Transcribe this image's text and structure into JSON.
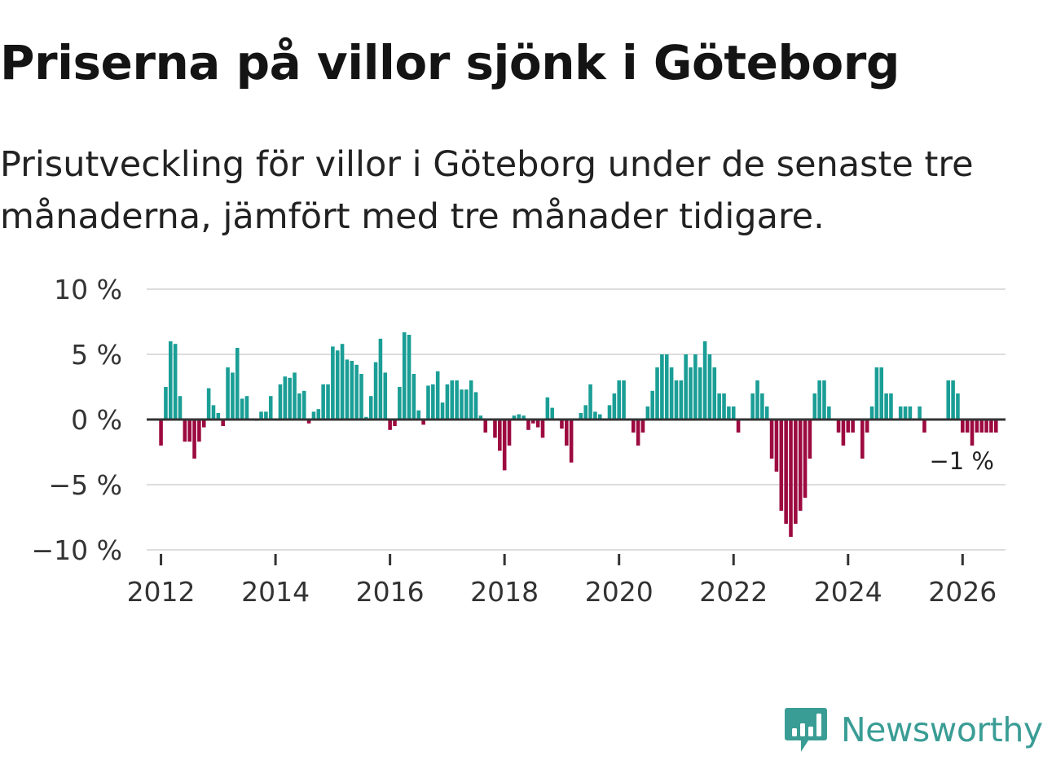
{
  "title": "Priserna på villor sjönk i Göteborg",
  "subtitle": "Prisutveckling för villor i Göteborg under de senaste tre månaderna, jämfört med tre månader tidigare.",
  "brand": {
    "name": "Newsworthy",
    "color": "#3a9d95"
  },
  "colors": {
    "positive": "#1a9e96",
    "negative": "#9c0a3f",
    "gridline": "#dddddd",
    "zeroline": "#333333",
    "text": "#222222"
  },
  "chart_data": {
    "type": "bar",
    "title": "Priserna på villor sjönk i Göteborg",
    "xlabel": "",
    "ylabel": "",
    "unit": "%",
    "ylim": [
      -10,
      10
    ],
    "xlim": [
      2011.75,
      2026.75
    ],
    "y_ticks": [
      10,
      5,
      0,
      -5,
      -10
    ],
    "y_tick_labels": [
      "10 %",
      "5 %",
      "0 %",
      "−5 %",
      "−10 %"
    ],
    "x_ticks": [
      2012,
      2014,
      2016,
      2018,
      2020,
      2022,
      2024,
      2026
    ],
    "x_tick_labels": [
      "2012",
      "2014",
      "2016",
      "2018",
      "2020",
      "2022",
      "2024",
      "2026"
    ],
    "grid": true,
    "start": "2012-01",
    "frequency": "monthly",
    "last_label": "−1 %",
    "values": [
      -2,
      2.5,
      6,
      5.8,
      1.8,
      -1.7,
      -1.7,
      -3,
      -1.7,
      -0.6,
      2.4,
      1.1,
      0.5,
      -0.5,
      4,
      3.6,
      5.5,
      1.6,
      1.8,
      0,
      -0.1,
      0.6,
      0.6,
      1.8,
      0,
      2.7,
      3.3,
      3.2,
      3.6,
      2,
      2.2,
      -0.3,
      0.6,
      0.8,
      2.7,
      2.7,
      5.6,
      5.3,
      5.8,
      4.6,
      4.5,
      4.2,
      3.5,
      0.2,
      1.8,
      4.4,
      6.2,
      3.6,
      -0.8,
      -0.5,
      2.5,
      6.7,
      6.5,
      3.5,
      0.7,
      -0.4,
      2.6,
      2.7,
      3.7,
      1.3,
      2.7,
      3,
      3,
      2.3,
      2.3,
      3,
      2.1,
      0.3,
      -1,
      0,
      -1.4,
      -2.4,
      -3.9,
      -2,
      0.3,
      0.4,
      0.3,
      -0.8,
      -0.3,
      -0.6,
      -1.4,
      1.7,
      0.9,
      0,
      -0.7,
      -2,
      -3.3,
      0,
      0.5,
      1.1,
      2.7,
      0.6,
      0.4,
      0,
      1.1,
      2,
      3,
      3,
      0,
      -1,
      -2,
      -1,
      1,
      2.2,
      4,
      5,
      5,
      4,
      3,
      3,
      5,
      4,
      5,
      4,
      6,
      5,
      4,
      2,
      2,
      1,
      1,
      -1,
      0,
      0,
      2,
      3,
      2,
      1,
      -3,
      -4,
      -7,
      -8,
      -9,
      -8,
      -7,
      -6,
      -3,
      2,
      3,
      3,
      1,
      0,
      -1,
      -2,
      -1,
      -1,
      0,
      -3,
      -1,
      1,
      4,
      4,
      2,
      2,
      0,
      1,
      1,
      1,
      0,
      1,
      -1,
      0,
      0,
      0,
      0,
      3,
      3,
      2,
      -1,
      -1,
      -2,
      -1,
      -1,
      -1,
      -1,
      -1
    ]
  }
}
